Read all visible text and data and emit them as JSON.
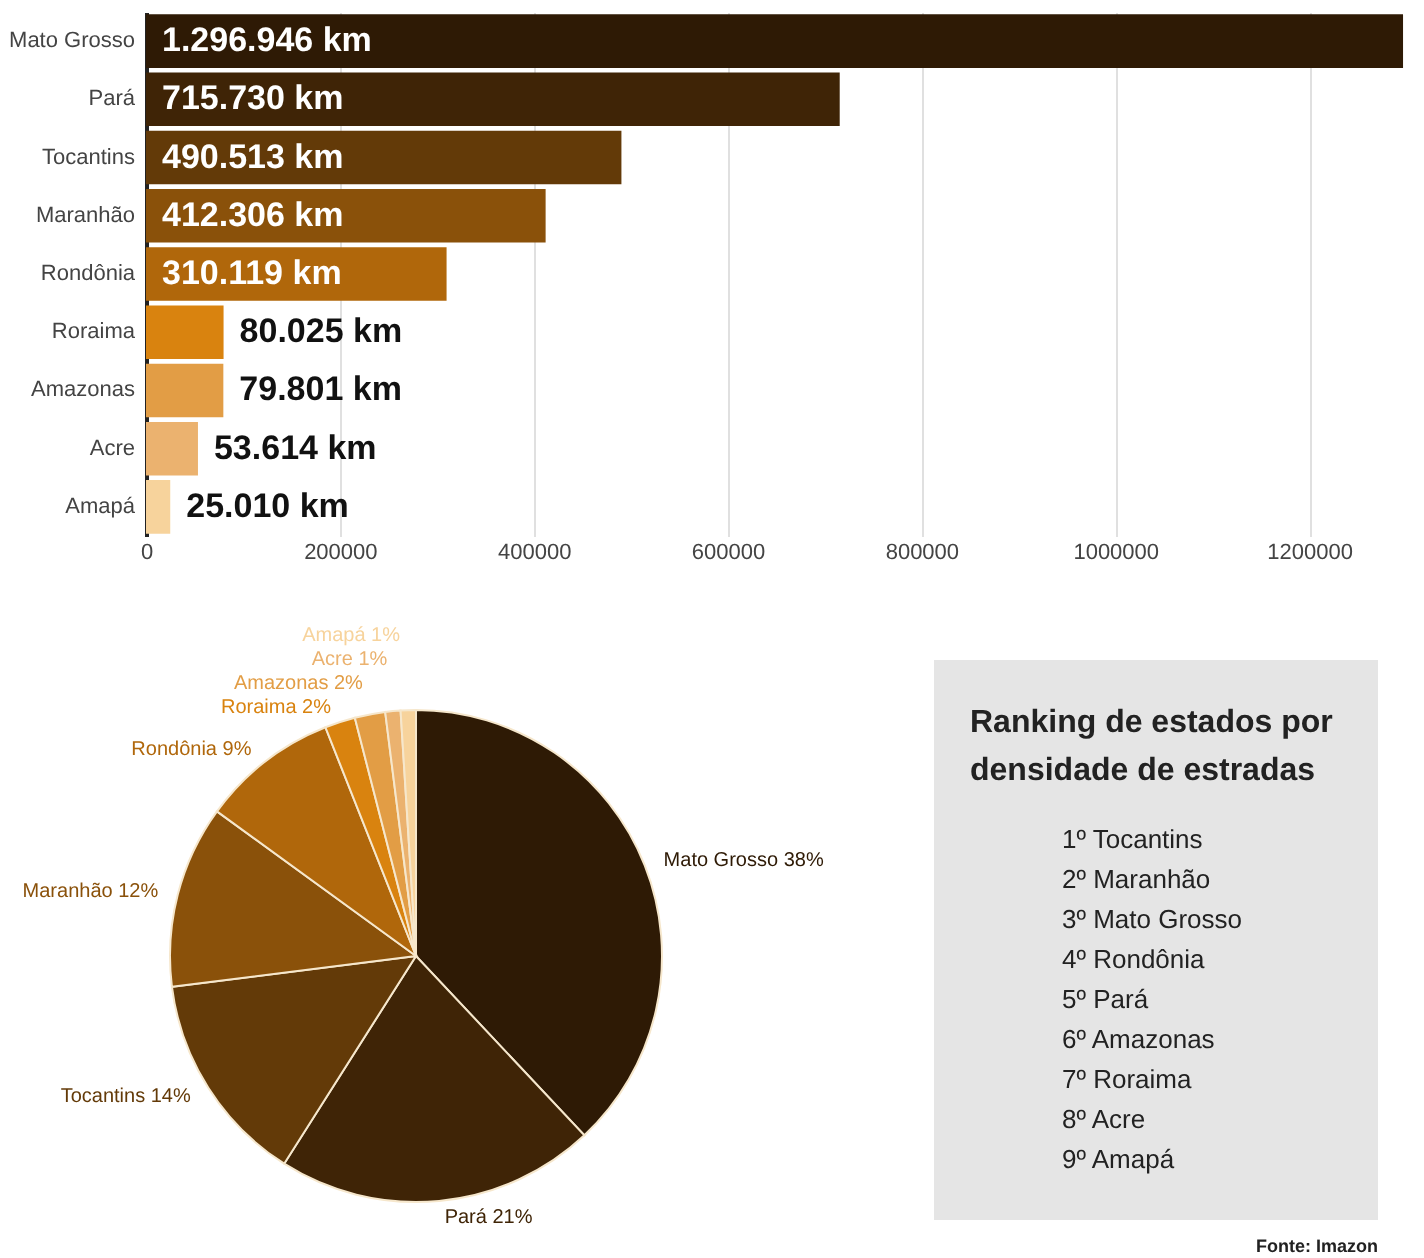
{
  "chart_data": [
    {
      "type": "bar",
      "orientation": "horizontal",
      "categories": [
        "Mato Grosso",
        "Pará",
        "Tocantins",
        "Maranhão",
        "Rondônia",
        "Roraima",
        "Amazonas",
        "Acre",
        "Amapá"
      ],
      "values": [
        1296946,
        715730,
        490513,
        412306,
        310119,
        80025,
        79801,
        53614,
        25010
      ],
      "colors": [
        "#2e1a05",
        "#3f2406",
        "#633a08",
        "#8a510a",
        "#b0670b",
        "#d9830f",
        "#e29d45",
        "#ebb26f",
        "#f7d39c"
      ],
      "value_labels": [
        "1.296.946 km",
        "715.730 km",
        "490.513 km",
        "412.306 km",
        "310.119 km",
        "80.025 km",
        "79.801 km",
        "53.614 km",
        "25.010 km"
      ],
      "xlim": [
        0,
        1300000
      ],
      "xticks": [
        0,
        200000,
        400000,
        600000,
        800000,
        1000000,
        1200000
      ],
      "grid": "x"
    },
    {
      "type": "pie",
      "categories": [
        "Mato Grosso",
        "Pará",
        "Tocantins",
        "Maranhão",
        "Rondônia",
        "Roraima",
        "Amazonas",
        "Acre",
        "Amapá"
      ],
      "values": [
        38,
        21,
        14,
        12,
        9,
        2,
        2,
        1,
        1
      ],
      "value_labels": [
        "38%",
        "21%",
        "14%",
        "12%",
        "9%",
        "2%",
        "2%",
        "1%",
        "1%"
      ],
      "colors": [
        "#2e1a05",
        "#3f2406",
        "#633a08",
        "#8a510a",
        "#b0670b",
        "#d9830f",
        "#e29d45",
        "#ebb26f",
        "#f7d39c"
      ]
    },
    {
      "type": "other",
      "title": "Ranking de estados por densidade de estradas",
      "annotations": [
        "1º Tocantins",
        "2º Maranhão",
        "3º Mato Grosso",
        "4º Rondônia",
        "5º Pará",
        "6º Amazonas",
        "7º Roraima",
        "8º Acre",
        "9º Amapá",
        "Fonte: Imazon"
      ]
    }
  ]
}
